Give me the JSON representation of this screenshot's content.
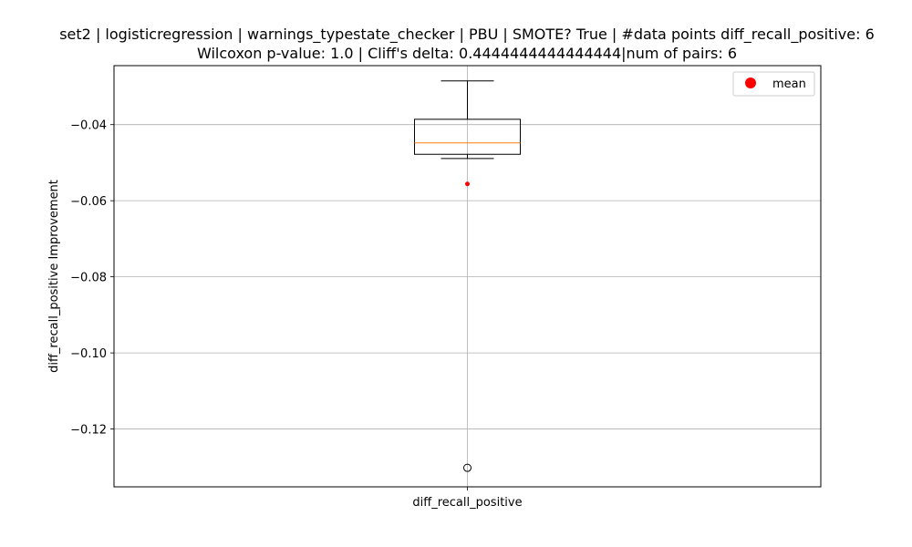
{
  "chart_data": {
    "type": "box",
    "title_line1": "set2 | logisticregression | warnings_typestate_checker | PBU | SMOTE? True | #data points diff_recall_positive: 6",
    "title_line2": "Wilcoxon p-value: 1.0 | Cliff's delta: 0.4444444444444444|num of pairs: 6",
    "xlabel": "",
    "ylabel": "diff_recall_positive Improvement",
    "categories": [
      "diff_recall_positive"
    ],
    "ylim": [
      -0.1352,
      -0.0245
    ],
    "yticks": [
      -0.04,
      -0.06,
      -0.08,
      -0.1,
      -0.12
    ],
    "ytick_labels": [
      "−0.04",
      "−0.06",
      "−0.08",
      "−0.10",
      "−0.12"
    ],
    "grid": true,
    "legend": {
      "position": "top-right",
      "entries": [
        {
          "label": "mean",
          "color": "#ff0000"
        }
      ]
    },
    "boxes": [
      {
        "name": "diff_recall_positive",
        "whisker_high": -0.0285,
        "q3": -0.0386,
        "median": -0.0448,
        "q1": -0.0478,
        "whisker_low": -0.0489,
        "mean": -0.0556,
        "outliers": [
          -0.1302
        ]
      }
    ],
    "colors": {
      "box": "#000000",
      "median": "#ff7f0e",
      "mean": "#ff0000",
      "grid": "#b0b0b0"
    }
  }
}
